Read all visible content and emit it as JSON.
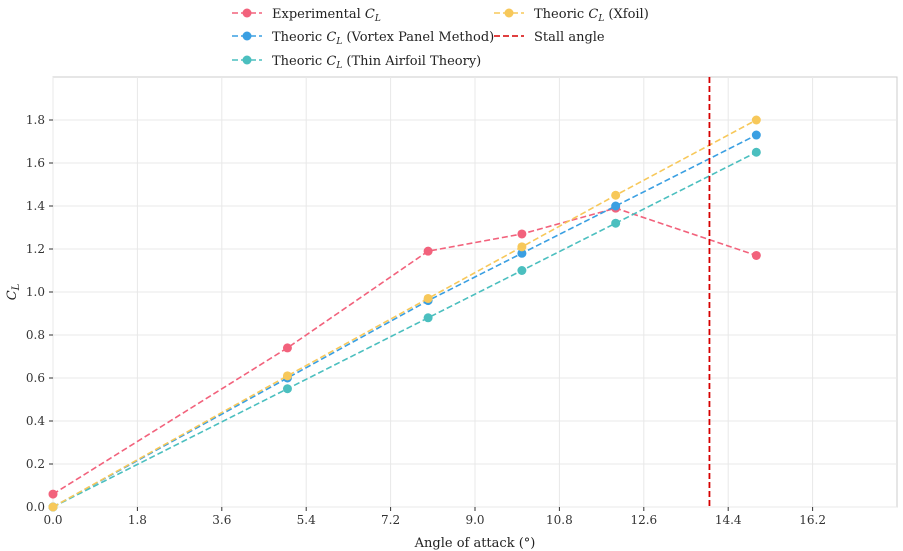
{
  "chart_data": {
    "type": "line",
    "title": "",
    "xlabel": "Angle of attack (°)",
    "ylabel": "C_L",
    "xlim": [
      0,
      18.0
    ],
    "ylim": [
      0,
      2.0
    ],
    "xticks": [
      "0.0",
      "1.8",
      "3.6",
      "5.4",
      "7.2",
      "9.0",
      "10.8",
      "12.6",
      "14.4",
      "16.2"
    ],
    "xtick_values": [
      0,
      1.8,
      3.6,
      5.4,
      7.2,
      9.0,
      10.8,
      12.6,
      14.4,
      16.2
    ],
    "yticks": [
      "0.0",
      "0.2",
      "0.4",
      "0.6",
      "0.8",
      "1.0",
      "1.2",
      "1.4",
      "1.6",
      "1.8"
    ],
    "ytick_values": [
      0,
      0.2,
      0.4,
      0.6,
      0.8,
      1.0,
      1.2,
      1.4,
      1.6,
      1.8
    ],
    "grid": true,
    "legend_position": "top-center",
    "series": [
      {
        "name": "Experimental",
        "name_sub": "L",
        "color": "#f2627c",
        "x": [
          0,
          5,
          8,
          10,
          12,
          15
        ],
        "y": [
          0.06,
          0.74,
          1.19,
          1.27,
          1.39,
          1.17
        ]
      },
      {
        "name": "Theoric",
        "name_sub": "L",
        "name_suffix": " (Vortex Panel Method)",
        "color": "#3a9fe2",
        "x": [
          0,
          5,
          8,
          10,
          12,
          15
        ],
        "y": [
          0.0,
          0.6,
          0.96,
          1.18,
          1.4,
          1.73
        ]
      },
      {
        "name": "Theoric",
        "name_sub": "L",
        "name_suffix": " (Thin Airfoil Theory)",
        "color": "#4bbfbf",
        "x": [
          0,
          5,
          8,
          10,
          12,
          15
        ],
        "y": [
          0.0,
          0.55,
          0.88,
          1.1,
          1.32,
          1.65
        ]
      },
      {
        "name": "Theoric",
        "name_sub": "L",
        "name_suffix": " (Xfoil)",
        "color": "#f7c85a",
        "x": [
          0,
          5,
          8,
          10,
          12,
          15
        ],
        "y": [
          0.0,
          0.61,
          0.97,
          1.21,
          1.45,
          1.8
        ]
      }
    ],
    "vline": {
      "name": "Stall angle",
      "x": 14.0,
      "color": "#d60000"
    }
  }
}
